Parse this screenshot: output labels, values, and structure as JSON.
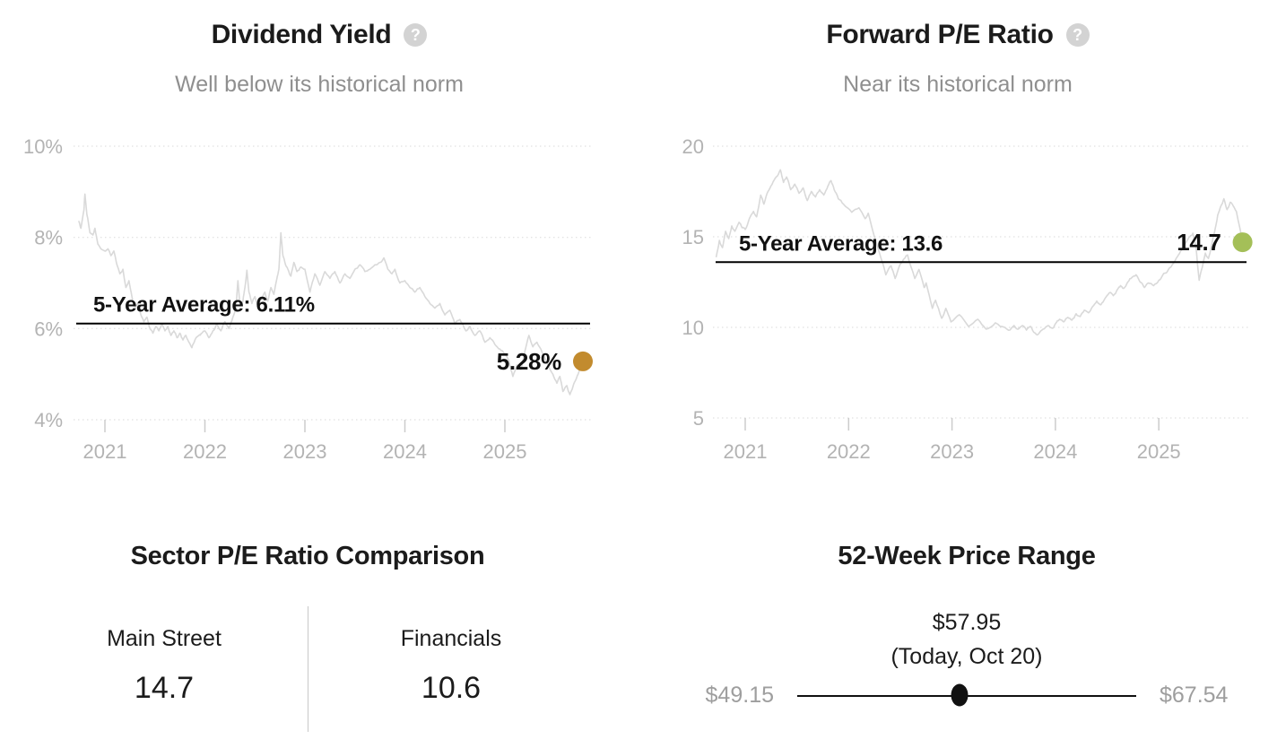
{
  "icons": {
    "help_glyph": "?"
  },
  "colors": {
    "title": "#1b1b1b",
    "subtitle": "#8f8f8f",
    "axis": "#b3b3b3",
    "series_line": "#d9d9d9",
    "average_line": "#000000",
    "dividend_dot": "#c28b2e",
    "pe_dot": "#a4bf58",
    "help_icon_bg": "#d3d3d3",
    "range_end_text": "#9e9e9e",
    "knob": "#111111"
  },
  "chart_data": [
    {
      "type": "line",
      "title": "Dividend Yield",
      "subtitle": "Well below its historical norm",
      "xlabel": "",
      "ylabel": "",
      "xlim": [
        2020.7,
        2025.9
      ],
      "ylim": [
        4,
        10
      ],
      "grid": true,
      "legend_position": "none",
      "y_ticks": [
        {
          "value": 10,
          "label": "10%"
        },
        {
          "value": 8,
          "label": "8%"
        },
        {
          "value": 6,
          "label": "6%"
        },
        {
          "value": 4,
          "label": "4%"
        }
      ],
      "x_ticks": [
        {
          "value": 2021,
          "label": "2021"
        },
        {
          "value": 2022,
          "label": "2022"
        },
        {
          "value": 2023,
          "label": "2023"
        },
        {
          "value": 2024,
          "label": "2024"
        },
        {
          "value": 2025,
          "label": "2025"
        }
      ],
      "average": {
        "value": 6.11,
        "label": "5-Year Average: 6.11%"
      },
      "current": {
        "value": 5.28,
        "label": "5.28%",
        "color": "#c28b2e"
      },
      "series": [
        [
          2020.74,
          8.35
        ],
        [
          2020.76,
          8.2
        ],
        [
          2020.79,
          8.6
        ],
        [
          2020.8,
          8.95
        ],
        [
          2020.82,
          8.5
        ],
        [
          2020.85,
          8.1
        ],
        [
          2020.88,
          8.05
        ],
        [
          2020.9,
          8.2
        ],
        [
          2020.93,
          7.85
        ],
        [
          2020.96,
          7.75
        ],
        [
          2021.0,
          7.7
        ],
        [
          2021.03,
          7.75
        ],
        [
          2021.06,
          7.6
        ],
        [
          2021.09,
          7.7
        ],
        [
          2021.12,
          7.4
        ],
        [
          2021.15,
          7.2
        ],
        [
          2021.18,
          7.3
        ],
        [
          2021.21,
          6.9
        ],
        [
          2021.24,
          7.05
        ],
        [
          2021.27,
          6.7
        ],
        [
          2021.3,
          6.45
        ],
        [
          2021.33,
          6.55
        ],
        [
          2021.36,
          6.3
        ],
        [
          2021.39,
          6.15
        ],
        [
          2021.42,
          6.25
        ],
        [
          2021.45,
          6.0
        ],
        [
          2021.48,
          5.9
        ],
        [
          2021.51,
          6.05
        ],
        [
          2021.54,
          5.95
        ],
        [
          2021.57,
          6.1
        ],
        [
          2021.6,
          5.95
        ],
        [
          2021.63,
          6.05
        ],
        [
          2021.66,
          5.85
        ],
        [
          2021.69,
          5.95
        ],
        [
          2021.72,
          5.8
        ],
        [
          2021.75,
          5.9
        ],
        [
          2021.78,
          5.75
        ],
        [
          2021.81,
          5.85
        ],
        [
          2021.84,
          5.7
        ],
        [
          2021.87,
          5.58
        ],
        [
          2021.9,
          5.75
        ],
        [
          2021.94,
          5.85
        ],
        [
          2021.97,
          5.9
        ],
        [
          2022.0,
          5.95
        ],
        [
          2022.04,
          5.8
        ],
        [
          2022.08,
          5.95
        ],
        [
          2022.12,
          6.1
        ],
        [
          2022.16,
          5.95
        ],
        [
          2022.2,
          6.15
        ],
        [
          2022.24,
          6.0
        ],
        [
          2022.28,
          6.25
        ],
        [
          2022.31,
          6.45
        ],
        [
          2022.33,
          7.05
        ],
        [
          2022.35,
          6.5
        ],
        [
          2022.38,
          6.6
        ],
        [
          2022.4,
          6.9
        ],
        [
          2022.42,
          7.28
        ],
        [
          2022.44,
          6.8
        ],
        [
          2022.47,
          6.55
        ],
        [
          2022.5,
          6.7
        ],
        [
          2022.53,
          6.5
        ],
        [
          2022.56,
          6.65
        ],
        [
          2022.6,
          6.8
        ],
        [
          2022.63,
          6.6
        ],
        [
          2022.66,
          6.9
        ],
        [
          2022.69,
          6.75
        ],
        [
          2022.72,
          7.1
        ],
        [
          2022.74,
          7.3
        ],
        [
          2022.76,
          8.1
        ],
        [
          2022.78,
          7.6
        ],
        [
          2022.8,
          7.45
        ],
        [
          2022.83,
          7.3
        ],
        [
          2022.86,
          7.15
        ],
        [
          2022.89,
          7.45
        ],
        [
          2022.92,
          7.25
        ],
        [
          2022.96,
          7.35
        ],
        [
          2023.0,
          7.3
        ],
        [
          2023.05,
          6.8
        ],
        [
          2023.1,
          7.2
        ],
        [
          2023.15,
          6.95
        ],
        [
          2023.2,
          7.25
        ],
        [
          2023.25,
          7.1
        ],
        [
          2023.3,
          7.25
        ],
        [
          2023.35,
          7.0
        ],
        [
          2023.4,
          7.2
        ],
        [
          2023.45,
          7.1
        ],
        [
          2023.5,
          7.3
        ],
        [
          2023.55,
          7.4
        ],
        [
          2023.6,
          7.25
        ],
        [
          2023.65,
          7.3
        ],
        [
          2023.7,
          7.4
        ],
        [
          2023.75,
          7.45
        ],
        [
          2023.79,
          7.55
        ],
        [
          2023.83,
          7.3
        ],
        [
          2023.87,
          7.2
        ],
        [
          2023.9,
          7.3
        ],
        [
          2023.95,
          7.0
        ],
        [
          2024.0,
          7.05
        ],
        [
          2024.05,
          6.9
        ],
        [
          2024.1,
          6.8
        ],
        [
          2024.15,
          6.9
        ],
        [
          2024.2,
          6.7
        ],
        [
          2024.25,
          6.55
        ],
        [
          2024.3,
          6.45
        ],
        [
          2024.35,
          6.55
        ],
        [
          2024.4,
          6.3
        ],
        [
          2024.45,
          6.4
        ],
        [
          2024.5,
          6.1
        ],
        [
          2024.55,
          6.2
        ],
        [
          2024.61,
          5.95
        ],
        [
          2024.65,
          6.05
        ],
        [
          2024.7,
          5.85
        ],
        [
          2024.75,
          5.95
        ],
        [
          2024.8,
          5.7
        ],
        [
          2024.85,
          5.8
        ],
        [
          2024.9,
          5.65
        ],
        [
          2024.95,
          5.55
        ],
        [
          2025.0,
          5.45
        ],
        [
          2025.04,
          5.3
        ],
        [
          2025.08,
          4.95
        ],
        [
          2025.12,
          5.2
        ],
        [
          2025.16,
          5.1
        ],
        [
          2025.2,
          5.5
        ],
        [
          2025.24,
          5.85
        ],
        [
          2025.28,
          5.6
        ],
        [
          2025.32,
          5.7
        ],
        [
          2025.36,
          5.55
        ],
        [
          2025.4,
          5.35
        ],
        [
          2025.44,
          5.15
        ],
        [
          2025.48,
          5.0
        ],
        [
          2025.52,
          4.8
        ],
        [
          2025.55,
          4.95
        ],
        [
          2025.58,
          4.62
        ],
        [
          2025.62,
          4.75
        ],
        [
          2025.65,
          4.55
        ],
        [
          2025.68,
          4.72
        ],
        [
          2025.71,
          4.88
        ],
        [
          2025.74,
          5.05
        ],
        [
          2025.78,
          5.28
        ]
      ]
    },
    {
      "type": "line",
      "title": "Forward P/E Ratio",
      "subtitle": "Near its historical norm",
      "xlabel": "",
      "ylabel": "",
      "xlim": [
        2020.7,
        2025.9
      ],
      "ylim": [
        5,
        20
      ],
      "grid": true,
      "legend_position": "none",
      "y_ticks": [
        {
          "value": 20,
          "label": "20"
        },
        {
          "value": 15,
          "label": "15"
        },
        {
          "value": 10,
          "label": "10"
        },
        {
          "value": 5,
          "label": "5"
        }
      ],
      "x_ticks": [
        {
          "value": 2021,
          "label": "2021"
        },
        {
          "value": 2022,
          "label": "2022"
        },
        {
          "value": 2023,
          "label": "2023"
        },
        {
          "value": 2024,
          "label": "2024"
        },
        {
          "value": 2025,
          "label": "2025"
        }
      ],
      "average": {
        "value": 13.6,
        "label": "5-Year Average: 13.6"
      },
      "current": {
        "value": 14.7,
        "label": "14.7",
        "color": "#a4bf58"
      },
      "series": [
        [
          2020.72,
          13.9
        ],
        [
          2020.75,
          14.8
        ],
        [
          2020.78,
          14.4
        ],
        [
          2020.81,
          15.3
        ],
        [
          2020.84,
          14.9
        ],
        [
          2020.87,
          15.6
        ],
        [
          2020.9,
          15.3
        ],
        [
          2020.94,
          15.8
        ],
        [
          2020.97,
          15.5
        ],
        [
          2021.0,
          15.4
        ],
        [
          2021.04,
          16.0
        ],
        [
          2021.08,
          16.4
        ],
        [
          2021.11,
          16.1
        ],
        [
          2021.15,
          17.3
        ],
        [
          2021.18,
          16.8
        ],
        [
          2021.22,
          17.5
        ],
        [
          2021.26,
          17.9
        ],
        [
          2021.3,
          18.3
        ],
        [
          2021.34,
          18.7
        ],
        [
          2021.37,
          18.0
        ],
        [
          2021.4,
          18.3
        ],
        [
          2021.44,
          17.6
        ],
        [
          2021.48,
          17.9
        ],
        [
          2021.52,
          17.4
        ],
        [
          2021.56,
          17.7
        ],
        [
          2021.6,
          17.0
        ],
        [
          2021.64,
          17.5
        ],
        [
          2021.68,
          17.2
        ],
        [
          2021.72,
          17.6
        ],
        [
          2021.76,
          17.3
        ],
        [
          2021.8,
          17.8
        ],
        [
          2021.83,
          18.1
        ],
        [
          2021.86,
          17.6
        ],
        [
          2021.9,
          17.1
        ],
        [
          2021.95,
          16.8
        ],
        [
          2022.03,
          16.35
        ],
        [
          2022.1,
          16.6
        ],
        [
          2022.16,
          16.0
        ],
        [
          2022.19,
          16.3
        ],
        [
          2022.25,
          15.0
        ],
        [
          2022.32,
          13.7
        ],
        [
          2022.36,
          12.9
        ],
        [
          2022.41,
          13.4
        ],
        [
          2022.45,
          12.7
        ],
        [
          2022.5,
          13.5
        ],
        [
          2022.54,
          13.8
        ],
        [
          2022.57,
          14.0
        ],
        [
          2022.64,
          12.7
        ],
        [
          2022.68,
          13.2
        ],
        [
          2022.73,
          12.2
        ],
        [
          2022.75,
          12.45
        ],
        [
          2022.81,
          11.05
        ],
        [
          2022.84,
          11.5
        ],
        [
          2022.9,
          10.5
        ],
        [
          2022.94,
          11.05
        ],
        [
          2022.99,
          10.3
        ],
        [
          2023.07,
          10.7
        ],
        [
          2023.16,
          10.05
        ],
        [
          2023.25,
          10.45
        ],
        [
          2023.33,
          9.9
        ],
        [
          2023.42,
          10.25
        ],
        [
          2023.51,
          10.0
        ],
        [
          2023.56,
          9.85
        ],
        [
          2023.6,
          10.1
        ],
        [
          2023.64,
          9.9
        ],
        [
          2023.68,
          10.1
        ],
        [
          2023.72,
          9.85
        ],
        [
          2023.76,
          10.05
        ],
        [
          2023.8,
          9.7
        ],
        [
          2023.83,
          9.6
        ],
        [
          2023.88,
          9.9
        ],
        [
          2023.93,
          10.1
        ],
        [
          2023.97,
          9.95
        ],
        [
          2024.0,
          10.2
        ],
        [
          2024.04,
          10.45
        ],
        [
          2024.08,
          10.3
        ],
        [
          2024.12,
          10.55
        ],
        [
          2024.16,
          10.4
        ],
        [
          2024.2,
          10.75
        ],
        [
          2024.24,
          10.6
        ],
        [
          2024.28,
          10.95
        ],
        [
          2024.32,
          10.8
        ],
        [
          2024.36,
          11.15
        ],
        [
          2024.4,
          11.45
        ],
        [
          2024.44,
          11.25
        ],
        [
          2024.48,
          11.6
        ],
        [
          2024.52,
          11.9
        ],
        [
          2024.56,
          11.75
        ],
        [
          2024.6,
          12.1
        ],
        [
          2024.63,
          12.3
        ],
        [
          2024.66,
          12.15
        ],
        [
          2024.7,
          12.5
        ],
        [
          2024.74,
          12.75
        ],
        [
          2024.78,
          12.9
        ],
        [
          2024.82,
          12.5
        ],
        [
          2024.86,
          12.2
        ],
        [
          2024.9,
          12.45
        ],
        [
          2024.95,
          12.3
        ],
        [
          2025.0,
          12.6
        ],
        [
          2025.04,
          12.9
        ],
        [
          2025.07,
          13.0
        ],
        [
          2025.11,
          13.3
        ],
        [
          2025.15,
          13.6
        ],
        [
          2025.19,
          14.0
        ],
        [
          2025.23,
          14.35
        ],
        [
          2025.27,
          14.75
        ],
        [
          2025.3,
          15.0
        ],
        [
          2025.33,
          15.2
        ],
        [
          2025.36,
          14.4
        ],
        [
          2025.39,
          12.6
        ],
        [
          2025.42,
          13.3
        ],
        [
          2025.45,
          14.1
        ],
        [
          2025.48,
          13.8
        ],
        [
          2025.51,
          14.5
        ],
        [
          2025.54,
          15.3
        ],
        [
          2025.57,
          16.2
        ],
        [
          2025.6,
          16.7
        ],
        [
          2025.63,
          17.1
        ],
        [
          2025.66,
          16.5
        ],
        [
          2025.69,
          16.9
        ],
        [
          2025.72,
          16.7
        ],
        [
          2025.75,
          16.4
        ],
        [
          2025.78,
          15.6
        ],
        [
          2025.81,
          14.7
        ]
      ]
    },
    {
      "type": "table",
      "title": "Sector P/E Ratio Comparison",
      "columns": [
        "Main Street",
        "Financials"
      ],
      "values": [
        "14.7",
        "10.6"
      ]
    },
    {
      "type": "table",
      "title": "52-Week Price Range",
      "low": 49.15,
      "high": 67.54,
      "current": 57.95,
      "low_label": "$49.15",
      "high_label": "$67.54",
      "current_label": "$57.95",
      "current_note": "(Today, Oct 20)"
    }
  ]
}
